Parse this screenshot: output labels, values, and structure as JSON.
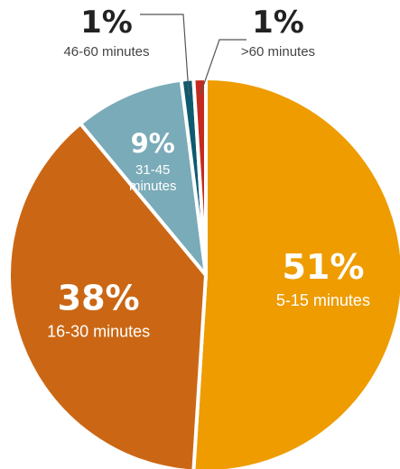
{
  "chart_data": {
    "type": "pie",
    "start_angle_deg": 0,
    "direction": "clockwise",
    "slice_border_color": "#ffffff",
    "leader_line_color": "#555555",
    "slices": [
      {
        "label": "5-15 minutes",
        "percent_label": "51%",
        "value": 51,
        "color": "#EE9C00"
      },
      {
        "label": "16-30 minutes",
        "percent_label": "38%",
        "value": 38,
        "color": "#CB6714"
      },
      {
        "label": "31-45\nminutes",
        "percent_label": "9%",
        "value": 9,
        "color": "#7AABB8"
      },
      {
        "label": "46-60 minutes",
        "percent_label": "1%",
        "value": 1,
        "color": "#0E5A6E"
      },
      {
        "label": ">60 minutes",
        "percent_label": "1%",
        "value": 1,
        "color": "#C52A1F"
      }
    ]
  }
}
